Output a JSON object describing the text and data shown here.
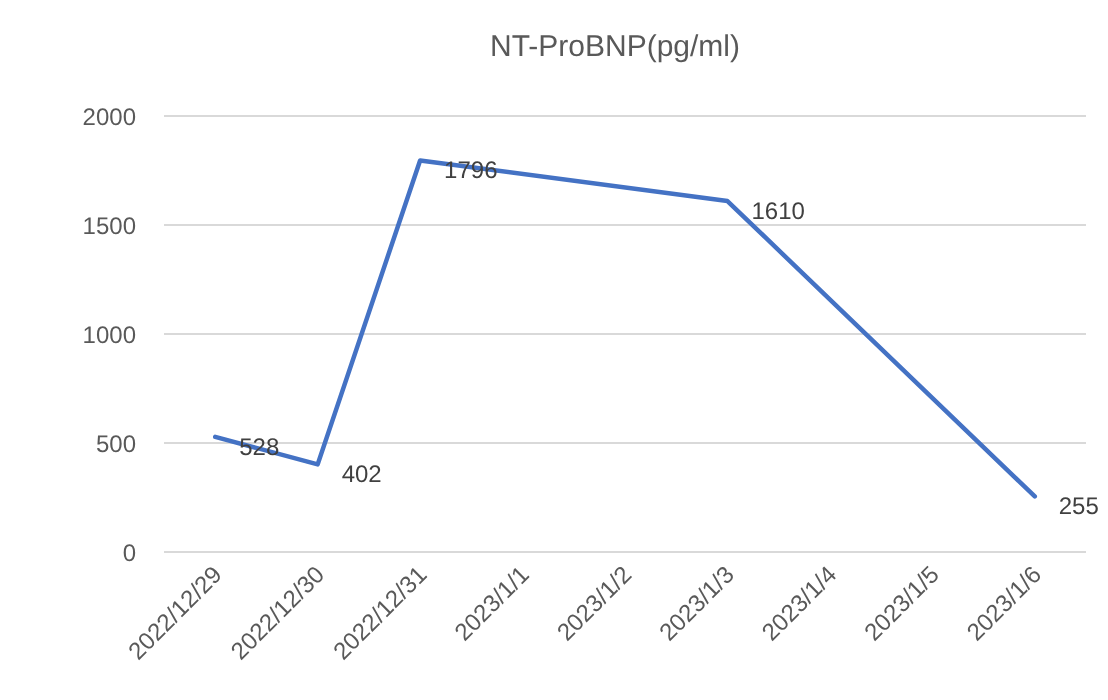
{
  "chart_data": {
    "type": "line",
    "title": "NT-ProBNP(pg/ml)",
    "x": [
      "2022-12-29",
      "2022-12-30",
      "2022-12-31",
      "2023-01-03",
      "2023-01-06"
    ],
    "series": [
      {
        "color": "#4472c4",
        "values": [
          528,
          402,
          1796,
          1610,
          255
        ]
      }
    ],
    "xlim": [
      "2022-12-28T12:00",
      "2023-01-06T12:00"
    ],
    "xticks": [
      {
        "value": "2022-12-29",
        "label": "2022/12/29"
      },
      {
        "value": "2022-12-30",
        "label": "2022/12/30"
      },
      {
        "value": "2022-12-31",
        "label": "2022/12/31"
      },
      {
        "value": "2023-01-01",
        "label": "2023/1/1"
      },
      {
        "value": "2023-01-02",
        "label": "2023/1/2"
      },
      {
        "value": "2023-01-03",
        "label": "2023/1/3"
      },
      {
        "value": "2023-01-04",
        "label": "2023/1/4"
      },
      {
        "value": "2023-01-05",
        "label": "2023/1/5"
      },
      {
        "value": "2023-01-06",
        "label": "2023/1/6"
      }
    ],
    "ylim": [
      0,
      2000
    ],
    "yticks": [
      0,
      500,
      1000,
      1500,
      2000
    ],
    "grid": "y",
    "data_labels": true,
    "marker": "none",
    "line_style": "solid"
  }
}
